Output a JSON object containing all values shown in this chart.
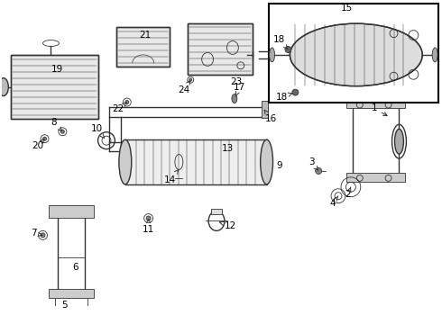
{
  "bg_color": "#ffffff",
  "line_color": "#333333",
  "label_color": "#000000",
  "box_color": "#000000",
  "figsize": [
    4.9,
    3.6
  ],
  "dpi": 100
}
